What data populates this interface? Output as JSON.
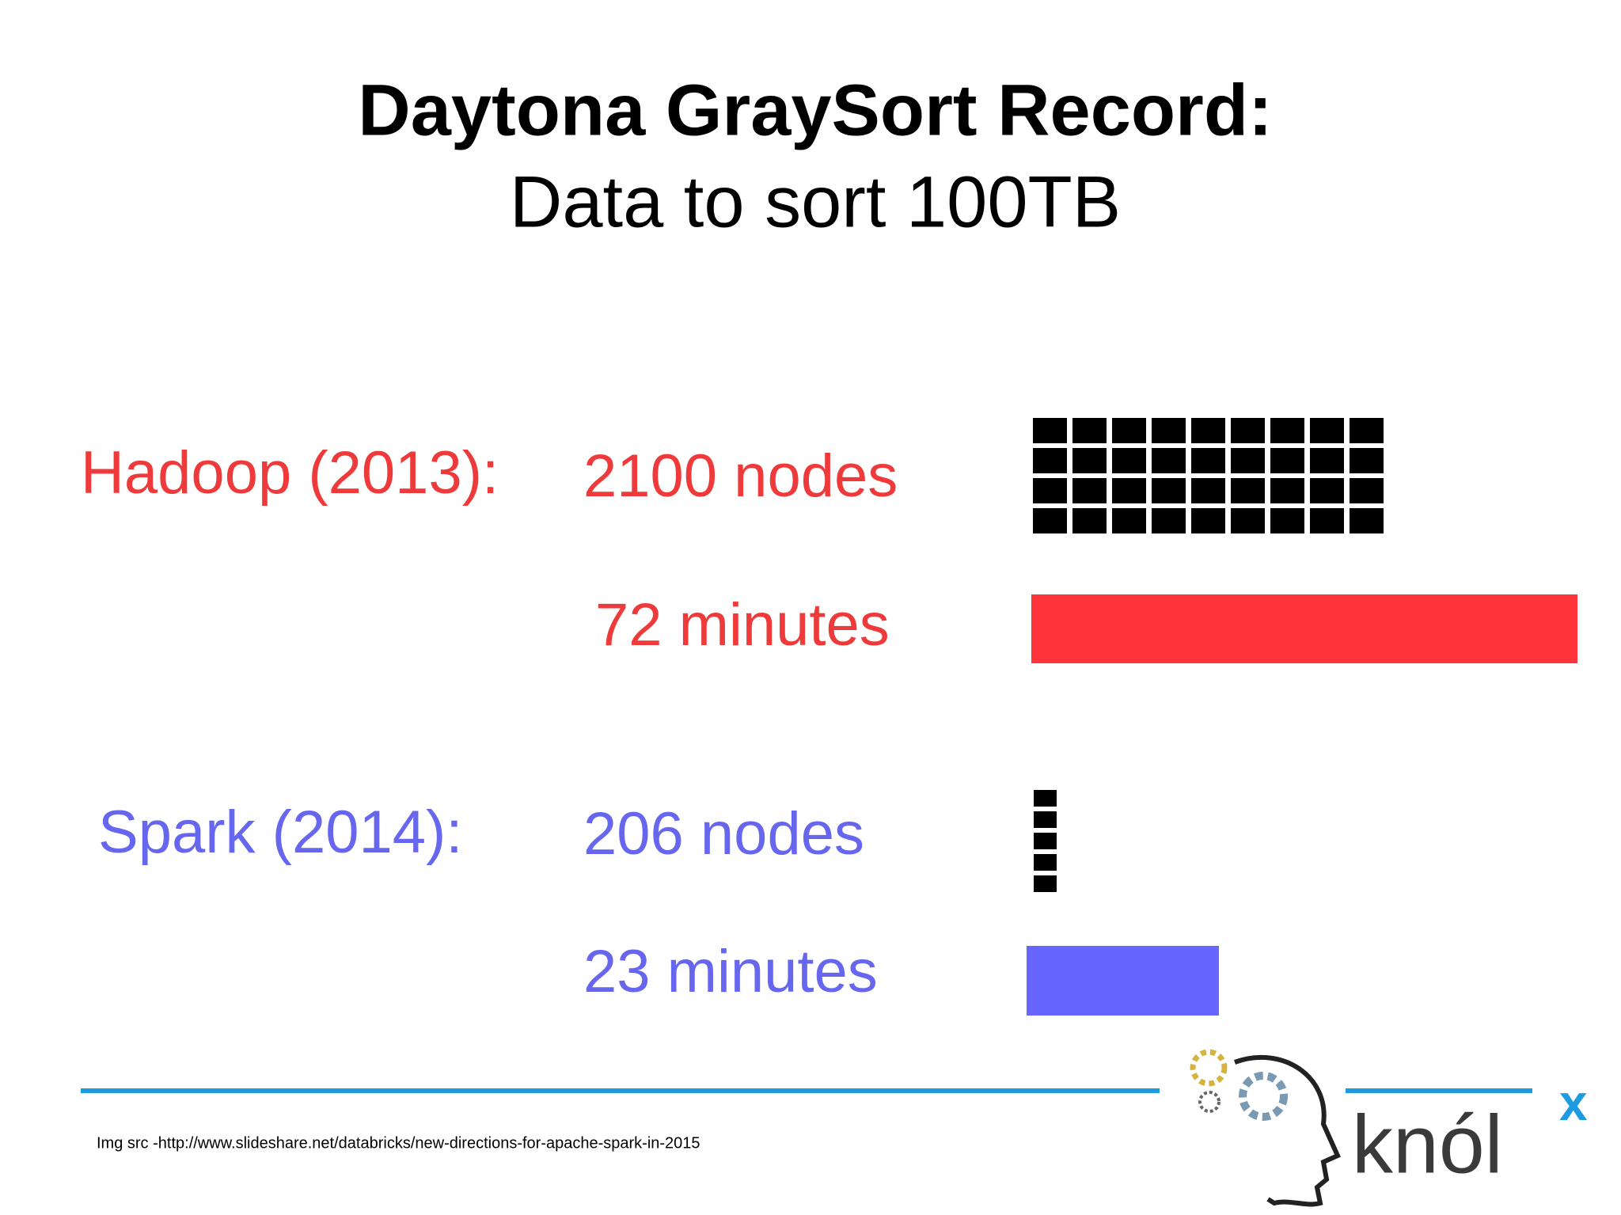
{
  "header": {
    "title": "Daytona GraySort Record:",
    "subtitle": "Data to sort 100TB"
  },
  "rows": [
    {
      "label": "Hadoop (2013):",
      "nodes": "2100 nodes",
      "time": "72 minutes"
    },
    {
      "label": "Spark (2014):",
      "nodes": "206 nodes",
      "time": "23 minutes"
    }
  ],
  "footnote": "Img src -http://www.slideshare.net/databricks/new-directions-for-apache-spark-in-2015",
  "logo": {
    "text": "knól",
    "superscript": "x"
  }
}
